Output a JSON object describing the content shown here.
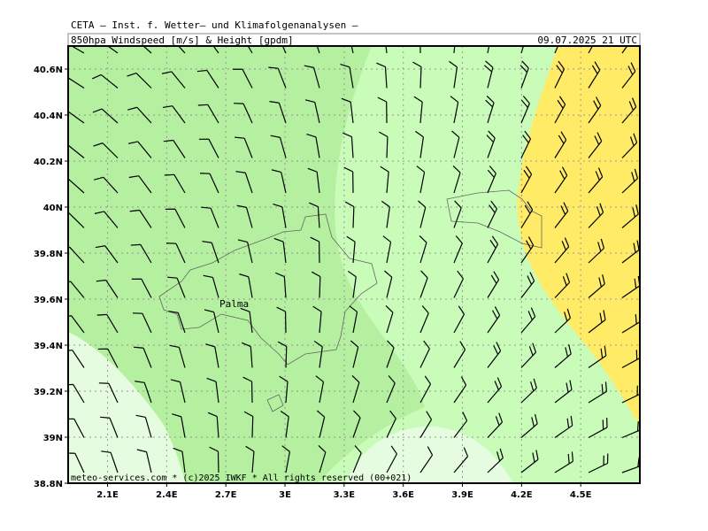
{
  "header": {
    "title": "CETA – Inst. f. Wetter– und Klimafolgenanalysen –",
    "subtitle": "850hpa_Windspeed_[m/s]_&_Height_[gpdm]",
    "timestamp": "09.07.2025 21 UTC"
  },
  "map": {
    "lat_range": [
      38.8,
      40.7
    ],
    "lon_range": [
      1.9,
      4.8
    ],
    "lat_ticks": [
      {
        "value": 40.6,
        "label": "40.6N"
      },
      {
        "value": 40.4,
        "label": "40.4N"
      },
      {
        "value": 40.2,
        "label": "40.2N"
      },
      {
        "value": 40,
        "label": "40N"
      },
      {
        "value": 39.8,
        "label": "39.8N"
      },
      {
        "value": 39.6,
        "label": "39.6N"
      },
      {
        "value": 39.4,
        "label": "39.4N"
      },
      {
        "value": 39.2,
        "label": "39.2N"
      },
      {
        "value": 39,
        "label": "39N"
      },
      {
        "value": 38.8,
        "label": "38.8N"
      }
    ],
    "lon_ticks": [
      {
        "value": 2.1,
        "label": "2.1E"
      },
      {
        "value": 2.4,
        "label": "2.4E"
      },
      {
        "value": 2.7,
        "label": "2.7E"
      },
      {
        "value": 3,
        "label": "3E"
      },
      {
        "value": 3.3,
        "label": "3.3E"
      },
      {
        "value": 3.6,
        "label": "3.6E"
      },
      {
        "value": 3.9,
        "label": "3.9E"
      },
      {
        "value": 4.2,
        "label": "4.2E"
      },
      {
        "value": 4.5,
        "label": "4.5E"
      }
    ],
    "place_label": "Palma",
    "footer": "meteo-services.com * (c)2025 IWKF * All rights reserved (00+021)"
  }
}
